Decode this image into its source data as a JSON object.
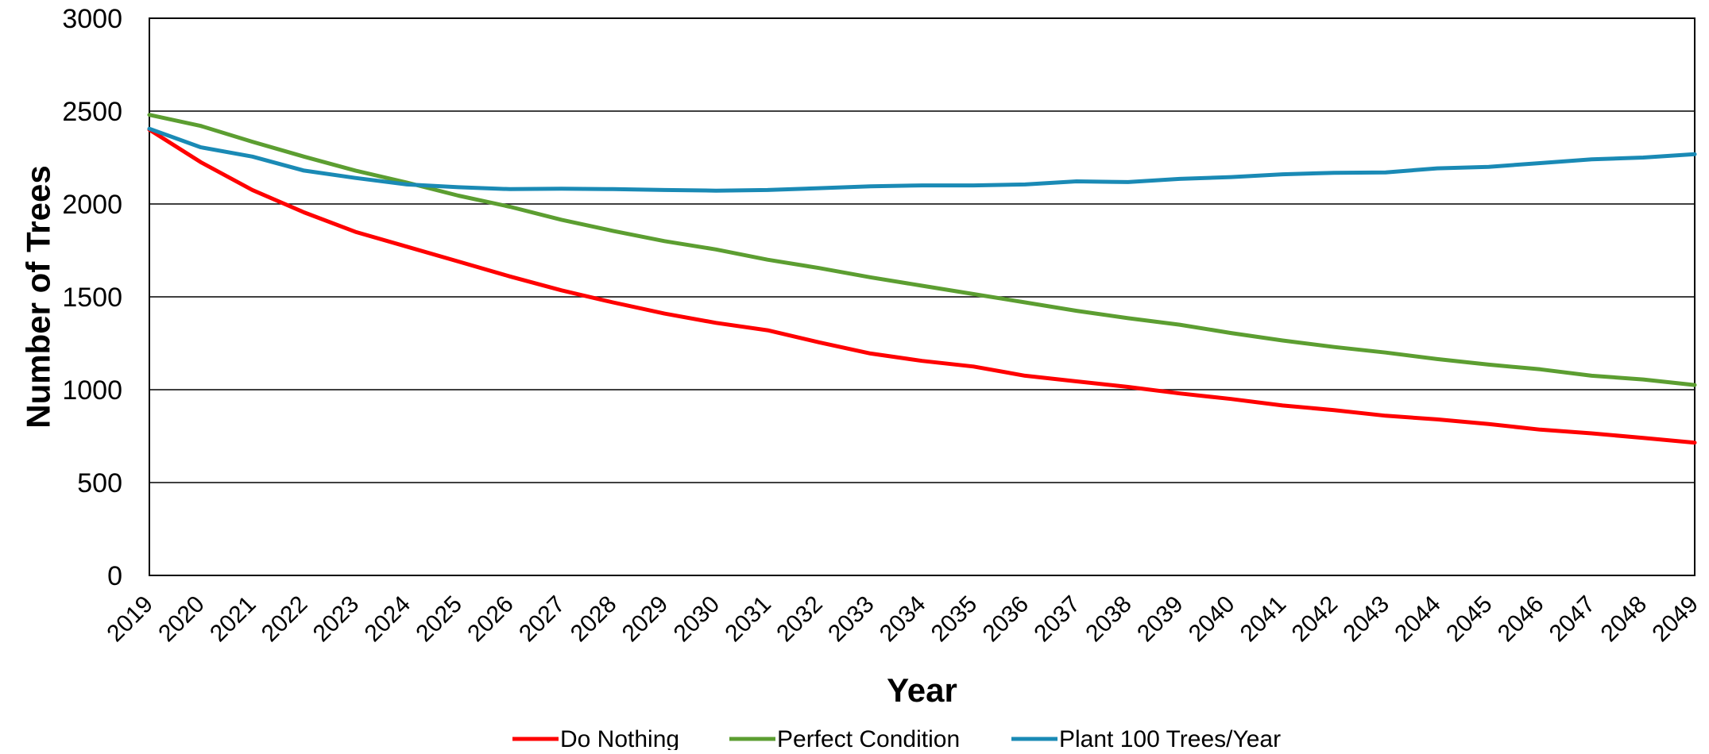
{
  "chart_data": {
    "type": "line",
    "title": "",
    "xlabel": "Year",
    "ylabel": "Number of Trees",
    "ylim": [
      0,
      3000
    ],
    "yticks": [
      "0",
      "500",
      "1000",
      "1500",
      "2000",
      "2500",
      "3000"
    ],
    "grid": "horizontal",
    "legend": "bottom",
    "x": [
      "2019",
      "2020",
      "2021",
      "2022",
      "2023",
      "2024",
      "2025",
      "2026",
      "2027",
      "2028",
      "2029",
      "2030",
      "2031",
      "2032",
      "2033",
      "2034",
      "2035",
      "2036",
      "2037",
      "2038",
      "2039",
      "2040",
      "2041",
      "2042",
      "2043",
      "2044",
      "2045",
      "2046",
      "2047",
      "2048",
      "2049"
    ],
    "series": [
      {
        "name": "Do Nothing",
        "color": "#ff0000",
        "values": [
          2400,
          2225,
          2075,
          1955,
          1850,
          1770,
          1690,
          1610,
          1535,
          1470,
          1410,
          1360,
          1320,
          1255,
          1195,
          1155,
          1125,
          1075,
          1045,
          1015,
          980,
          950,
          915,
          890,
          860,
          840,
          815,
          785,
          765,
          740,
          715
        ]
      },
      {
        "name": "Perfect Condition",
        "color": "#5c9e31",
        "values": [
          2480,
          2420,
          2335,
          2255,
          2180,
          2115,
          2045,
          1985,
          1915,
          1855,
          1800,
          1755,
          1700,
          1655,
          1605,
          1560,
          1515,
          1470,
          1425,
          1385,
          1350,
          1305,
          1265,
          1230,
          1200,
          1165,
          1135,
          1110,
          1075,
          1055,
          1025
        ]
      },
      {
        "name": "Plant 100 Trees/Year",
        "color": "#1a8ab5",
        "values": [
          2405,
          2305,
          2255,
          2180,
          2140,
          2105,
          2090,
          2080,
          2082,
          2080,
          2075,
          2072,
          2075,
          2085,
          2095,
          2100,
          2100,
          2105,
          2122,
          2118,
          2135,
          2145,
          2160,
          2168,
          2170,
          2192,
          2200,
          2220,
          2240,
          2250,
          2268
        ]
      }
    ]
  }
}
